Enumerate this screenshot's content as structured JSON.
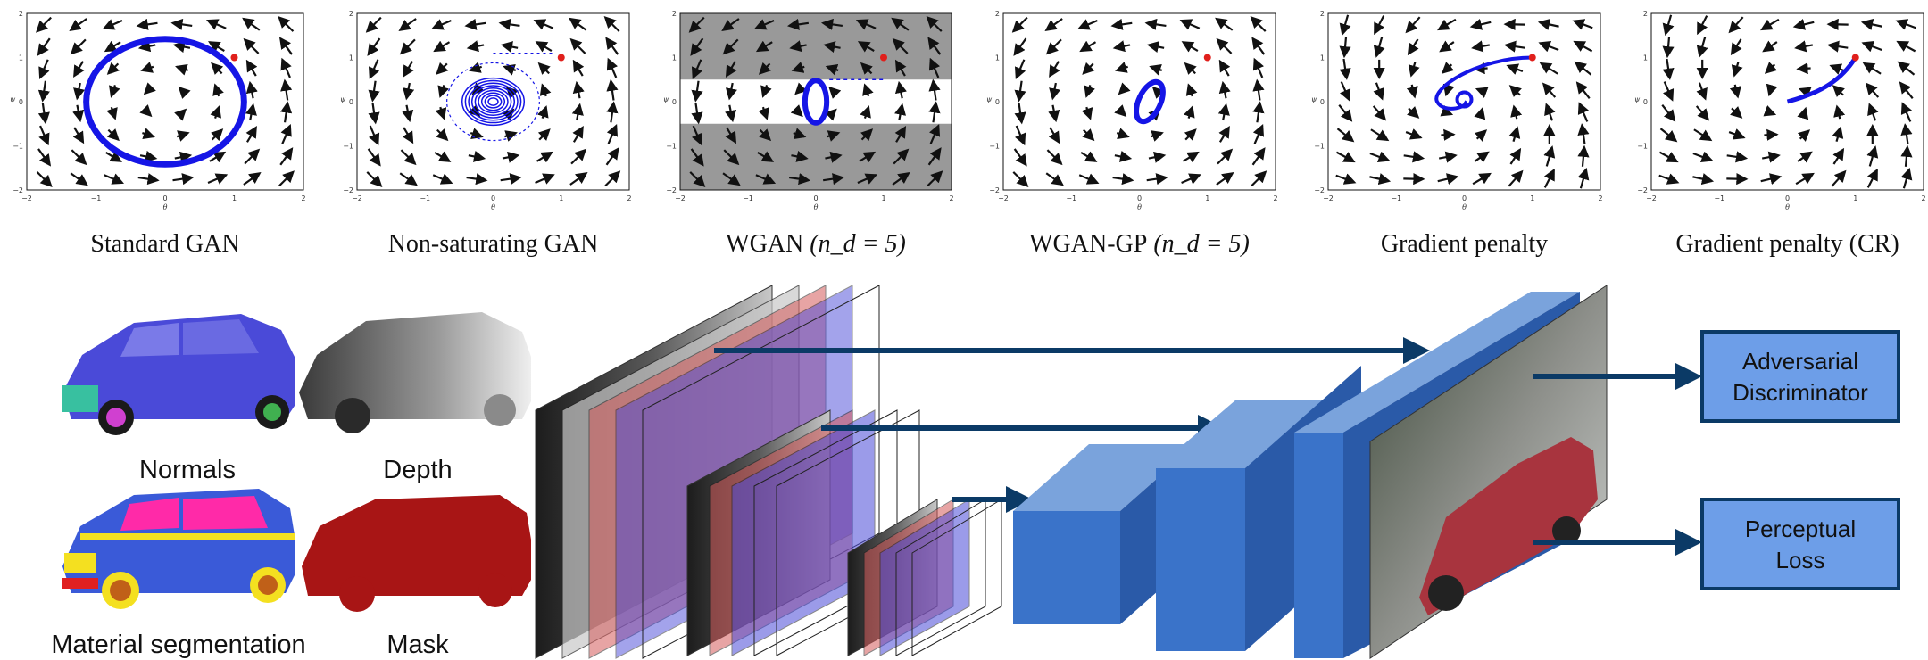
{
  "plots": [
    {
      "caption": "Standard GAN",
      "dynamics": "circle"
    },
    {
      "caption": "Non-saturating GAN",
      "dynamics": "spiral-dense"
    },
    {
      "caption": "WGAN",
      "caption_sub": "(n_d = 5)",
      "dynamics": "clipped"
    },
    {
      "caption": "WGAN-GP",
      "caption_sub": "(n_d = 5)",
      "dynamics": "small-ellipse"
    },
    {
      "caption": "Gradient penalty",
      "dynamics": "converging-spiral"
    },
    {
      "caption": "Gradient penalty (CR)",
      "dynamics": "line-converge"
    }
  ],
  "axis": {
    "x_label": "θ",
    "y_label": "ψ",
    "x_ticks": [
      "−2",
      "−1",
      "0",
      "1",
      "2"
    ],
    "y_ticks": [
      "2",
      "1",
      "0",
      "−1",
      "−2"
    ]
  },
  "inputs": [
    {
      "label": "Normals"
    },
    {
      "label": "Depth"
    },
    {
      "label": "Material segmentation"
    },
    {
      "label": "Mask"
    }
  ],
  "outputs": {
    "adversarial": [
      "Adversarial",
      "Discriminator"
    ],
    "perceptual": [
      "Perceptual",
      "Loss"
    ]
  },
  "colors": {
    "trajectory": "#1515e6",
    "start_point": "#e0201c",
    "arrow": "#0b3a66",
    "block_front": "#3a73c9",
    "block_top": "#7aa3dc",
    "block_side": "#2a5aa8",
    "loss_box": "#6d9ee8",
    "loss_border": "#0b3a66",
    "normals": "#4a4ad8",
    "mask": "#a81515"
  }
}
